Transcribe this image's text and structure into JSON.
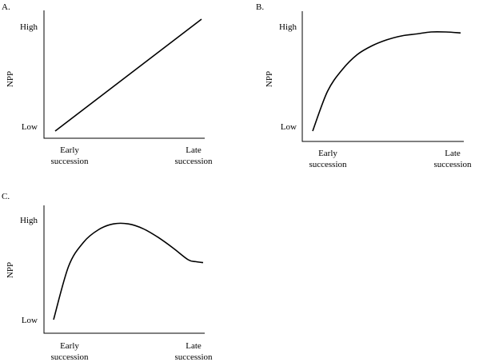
{
  "chart_data": [
    {
      "panel": "A.",
      "type": "line",
      "ylabel": "NPP",
      "y_ticks": [
        "Low",
        "High"
      ],
      "x_ticks": [
        [
          "Early",
          "succession"
        ],
        [
          "Late",
          "succession"
        ]
      ],
      "ylim": [
        0,
        1
      ],
      "xlim": [
        0,
        1
      ],
      "series": [
        {
          "x": [
            0,
            1
          ],
          "y": [
            0,
            1
          ]
        }
      ]
    },
    {
      "panel": "B.",
      "type": "line",
      "ylabel": "NPP",
      "y_ticks": [
        "Low",
        "High"
      ],
      "x_ticks": [
        [
          "Early",
          "succession"
        ],
        [
          "Late",
          "succession"
        ]
      ],
      "ylim": [
        0,
        1
      ],
      "xlim": [
        0,
        1
      ],
      "series": [
        {
          "x": [
            0,
            0.1,
            0.2,
            0.3,
            0.4,
            0.5,
            0.6,
            0.7,
            0.8,
            0.9,
            1.0
          ],
          "y": [
            0,
            0.4,
            0.62,
            0.77,
            0.86,
            0.92,
            0.96,
            0.98,
            1.0,
            1.0,
            0.99
          ]
        }
      ]
    },
    {
      "panel": "C.",
      "type": "line",
      "ylabel": "NPP",
      "y_ticks": [
        "Low",
        "High"
      ],
      "x_ticks": [
        [
          "Early",
          "succession"
        ],
        [
          "Late",
          "succession"
        ]
      ],
      "ylim": [
        0,
        1
      ],
      "xlim": [
        0,
        1
      ],
      "series": [
        {
          "x": [
            0,
            0.1,
            0.2,
            0.3,
            0.4,
            0.5,
            0.6,
            0.7,
            0.8,
            0.9,
            0.95,
            1.0
          ],
          "y": [
            0,
            0.55,
            0.8,
            0.93,
            0.99,
            0.99,
            0.94,
            0.85,
            0.74,
            0.62,
            0.6,
            0.59
          ]
        }
      ]
    }
  ]
}
